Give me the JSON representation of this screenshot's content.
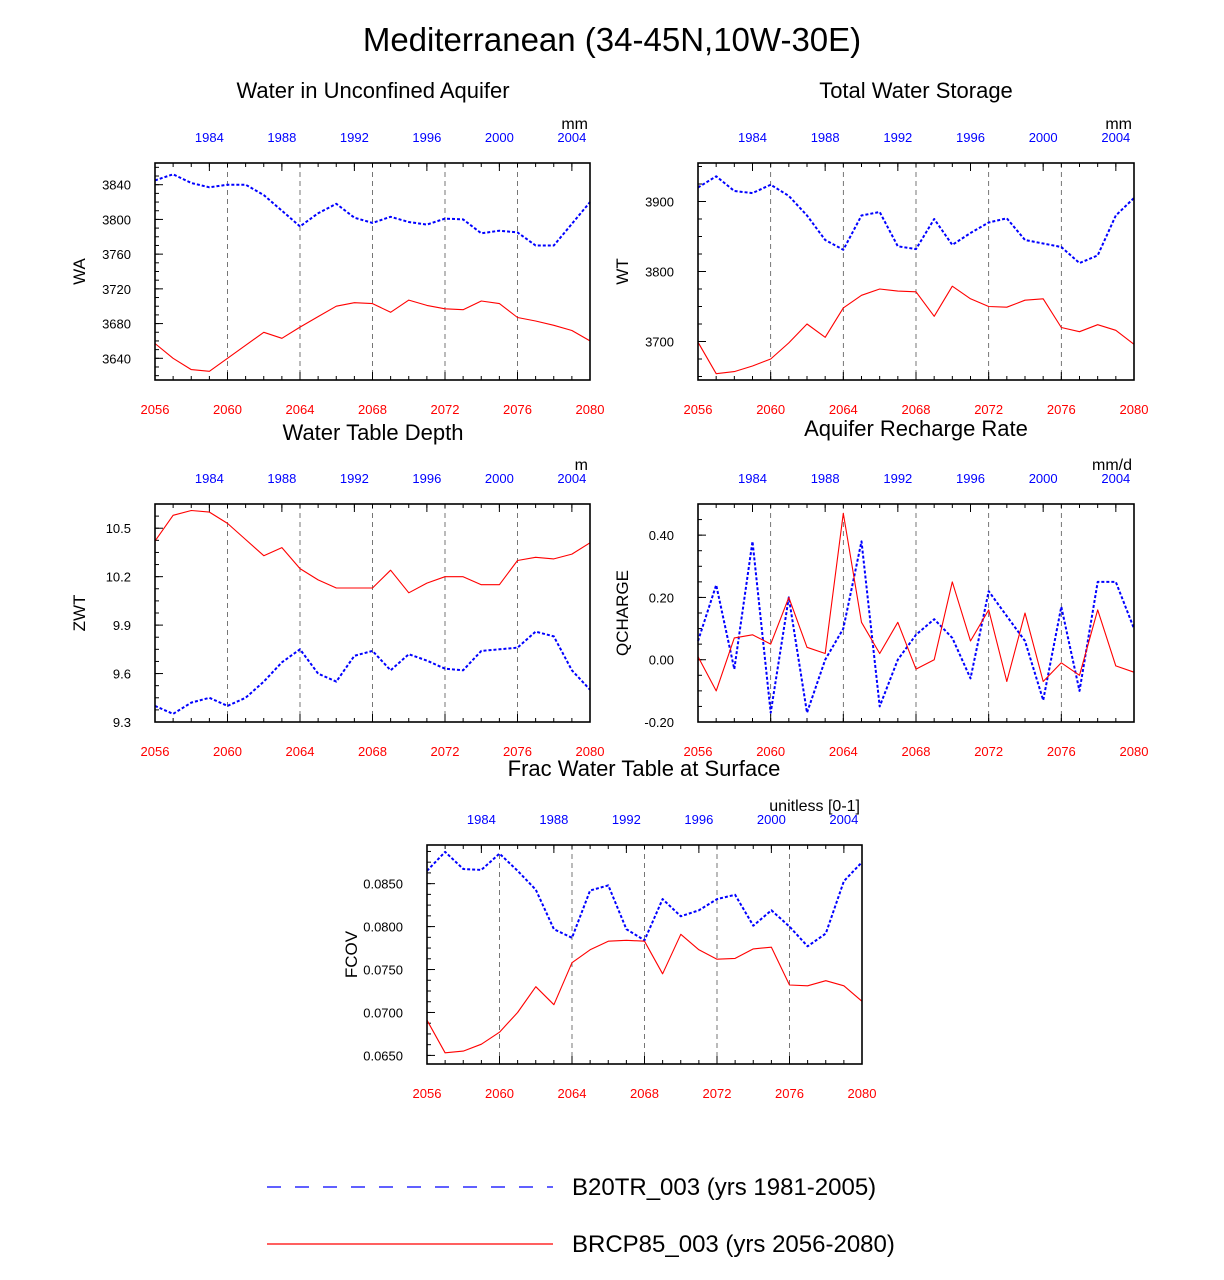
{
  "title": "Mediterranean (34-45N,10W-30E)",
  "colors": {
    "top_axis": "#0000ff",
    "bottom_axis": "#ff0000",
    "series_b20tr": "#0000ff",
    "series_brcp85": "#ff0000",
    "frame": "#000000",
    "grid": "#555555"
  },
  "legend": {
    "entries": [
      {
        "label": "B20TR_003 (yrs 1981-2005)",
        "style": "dashed",
        "color": "#0000ff"
      },
      {
        "label": "BRCP85_003 (yrs 2056-2080)",
        "style": "solid",
        "color": "#ff0000"
      }
    ]
  },
  "chart_data": [
    {
      "type": "line",
      "title": "Water in Unconfined Aquifer",
      "ylabel": "WA",
      "units": "mm",
      "ylim": [
        3615,
        3865
      ],
      "yticks": [
        3640,
        3680,
        3720,
        3760,
        3800,
        3840
      ],
      "ytick_labels": [
        "3640",
        "3680",
        "3720",
        "3760",
        "3800",
        "3840"
      ],
      "x_bottom": {
        "range": [
          2056,
          2080
        ],
        "ticks": [
          "2056",
          "2060",
          "2064",
          "2068",
          "2072",
          "2076",
          "2080"
        ]
      },
      "x_top": {
        "range": [
          1981,
          2005
        ],
        "ticks": [
          "1984",
          "1988",
          "1992",
          "1996",
          "2000",
          "2004"
        ]
      },
      "series": [
        {
          "name": "B20TR_003",
          "years": "1981-2005",
          "values": [
            3845,
            3852,
            3842,
            3837,
            3840,
            3840,
            3828,
            3810,
            3792,
            3807,
            3818,
            3802,
            3796,
            3803,
            3797,
            3794,
            3801,
            3800,
            3784,
            3787,
            3785,
            3770,
            3770,
            3795,
            3820
          ]
        },
        {
          "name": "BRCP85_003",
          "years": "2056-2080",
          "values": [
            3657,
            3640,
            3627,
            3625,
            3640,
            3655,
            3670,
            3663,
            3676,
            3688,
            3700,
            3704,
            3703,
            3693,
            3707,
            3701,
            3697,
            3696,
            3706,
            3703,
            3687,
            3683,
            3678,
            3672,
            3660
          ]
        }
      ]
    },
    {
      "type": "line",
      "title": "Total Water Storage",
      "ylabel": "WT",
      "units": "mm",
      "ylim": [
        3645,
        3955
      ],
      "yticks": [
        3700,
        3800,
        3900
      ],
      "ytick_labels": [
        "3700",
        "3800",
        "3900"
      ],
      "x_bottom": {
        "range": [
          2056,
          2080
        ],
        "ticks": [
          "2056",
          "2060",
          "2064",
          "2068",
          "2072",
          "2076",
          "2080"
        ]
      },
      "x_top": {
        "range": [
          1981,
          2005
        ],
        "ticks": [
          "1984",
          "1988",
          "1992",
          "1996",
          "2000",
          "2004"
        ]
      },
      "series": [
        {
          "name": "B20TR_003",
          "years": "1981-2005",
          "values": [
            3920,
            3936,
            3915,
            3912,
            3924,
            3908,
            3880,
            3845,
            3831,
            3880,
            3885,
            3836,
            3832,
            3875,
            3838,
            3855,
            3870,
            3876,
            3845,
            3840,
            3835,
            3812,
            3823,
            3880,
            3905
          ]
        },
        {
          "name": "BRCP85_003",
          "years": "2056-2080",
          "values": [
            3699,
            3654,
            3657,
            3665,
            3675,
            3698,
            3725,
            3706,
            3748,
            3766,
            3775,
            3772,
            3771,
            3736,
            3779,
            3761,
            3750,
            3749,
            3759,
            3761,
            3720,
            3714,
            3724,
            3716,
            3696
          ]
        }
      ]
    },
    {
      "type": "line",
      "title": "Water Table Depth",
      "ylabel": "ZWT",
      "units": "m",
      "ylim": [
        9.3,
        10.65
      ],
      "yticks": [
        9.3,
        9.6,
        9.9,
        10.2,
        10.5
      ],
      "ytick_labels": [
        "9.3",
        "9.6",
        "9.9",
        "10.2",
        "10.5"
      ],
      "x_bottom": {
        "range": [
          2056,
          2080
        ],
        "ticks": [
          "2056",
          "2060",
          "2064",
          "2068",
          "2072",
          "2076",
          "2080"
        ]
      },
      "x_top": {
        "range": [
          1981,
          2005
        ],
        "ticks": [
          "1984",
          "1988",
          "1992",
          "1996",
          "2000",
          "2004"
        ]
      },
      "series": [
        {
          "name": "B20TR_003",
          "years": "1981-2005",
          "values": [
            9.4,
            9.35,
            9.42,
            9.45,
            9.4,
            9.45,
            9.55,
            9.67,
            9.75,
            9.6,
            9.55,
            9.71,
            9.74,
            9.62,
            9.72,
            9.68,
            9.63,
            9.62,
            9.74,
            9.75,
            9.76,
            9.86,
            9.83,
            9.62,
            9.5
          ]
        },
        {
          "name": "BRCP85_003",
          "years": "2056-2080",
          "values": [
            10.42,
            10.58,
            10.61,
            10.6,
            10.53,
            10.43,
            10.33,
            10.38,
            10.25,
            10.18,
            10.13,
            10.13,
            10.13,
            10.24,
            10.1,
            10.16,
            10.2,
            10.2,
            10.15,
            10.15,
            10.3,
            10.32,
            10.31,
            10.34,
            10.41
          ]
        }
      ]
    },
    {
      "type": "line",
      "title": "Aquifer Recharge Rate",
      "ylabel": "QCHARGE",
      "units": "mm/d",
      "ylim": [
        -0.2,
        0.5
      ],
      "yticks": [
        -0.2,
        0.0,
        0.2,
        0.4
      ],
      "ytick_labels": [
        "-0.20",
        "0.00",
        "0.20",
        "0.40"
      ],
      "x_bottom": {
        "range": [
          2056,
          2080
        ],
        "ticks": [
          "2056",
          "2060",
          "2064",
          "2068",
          "2072",
          "2076",
          "2080"
        ]
      },
      "x_top": {
        "range": [
          1981,
          2005
        ],
        "ticks": [
          "1984",
          "1988",
          "1992",
          "1996",
          "2000",
          "2004"
        ]
      },
      "series": [
        {
          "name": "B20TR_003",
          "years": "1981-2005",
          "values": [
            0.06,
            0.24,
            -0.03,
            0.38,
            -0.17,
            0.2,
            -0.17,
            0.0,
            0.1,
            0.38,
            -0.15,
            0.0,
            0.08,
            0.13,
            0.07,
            -0.06,
            0.22,
            0.14,
            0.06,
            -0.13,
            0.17,
            -0.1,
            0.25,
            0.25,
            0.1
          ]
        },
        {
          "name": "BRCP85_003",
          "years": "2056-2080",
          "values": [
            0.01,
            -0.1,
            0.07,
            0.08,
            0.05,
            0.2,
            0.04,
            0.02,
            0.47,
            0.12,
            0.02,
            0.12,
            -0.03,
            0.0,
            0.25,
            0.06,
            0.16,
            -0.07,
            0.15,
            -0.07,
            -0.01,
            -0.05,
            0.16,
            -0.02,
            -0.04
          ]
        }
      ]
    },
    {
      "type": "line",
      "title": "Frac Water Table at Surface",
      "ylabel": "FCOV",
      "units": "unitless [0-1]",
      "ylim": [
        0.064,
        0.0895
      ],
      "yticks": [
        0.065,
        0.07,
        0.075,
        0.08,
        0.085
      ],
      "ytick_labels": [
        "0.0650",
        "0.0700",
        "0.0750",
        "0.0800",
        "0.0850"
      ],
      "x_bottom": {
        "range": [
          2056,
          2080
        ],
        "ticks": [
          "2056",
          "2060",
          "2064",
          "2068",
          "2072",
          "2076",
          "2080"
        ]
      },
      "x_top": {
        "range": [
          1981,
          2005
        ],
        "ticks": [
          "1984",
          "1988",
          "1992",
          "1996",
          "2000",
          "2004"
        ]
      },
      "series": [
        {
          "name": "B20TR_003",
          "years": "1981-2005",
          "values": [
            0.0865,
            0.0887,
            0.0867,
            0.0866,
            0.0885,
            0.0865,
            0.0843,
            0.0797,
            0.0787,
            0.0842,
            0.0848,
            0.0797,
            0.0784,
            0.0832,
            0.0812,
            0.0819,
            0.0832,
            0.0837,
            0.0801,
            0.0819,
            0.08,
            0.0777,
            0.0792,
            0.0853,
            0.0875
          ]
        },
        {
          "name": "BRCP85_003",
          "years": "2056-2080",
          "values": [
            0.0691,
            0.0653,
            0.0655,
            0.0663,
            0.0677,
            0.07,
            0.073,
            0.0709,
            0.0758,
            0.0773,
            0.0783,
            0.0784,
            0.0783,
            0.0745,
            0.0791,
            0.0773,
            0.0762,
            0.0763,
            0.0774,
            0.0776,
            0.0732,
            0.0731,
            0.0737,
            0.0731,
            0.0713
          ]
        }
      ]
    }
  ]
}
